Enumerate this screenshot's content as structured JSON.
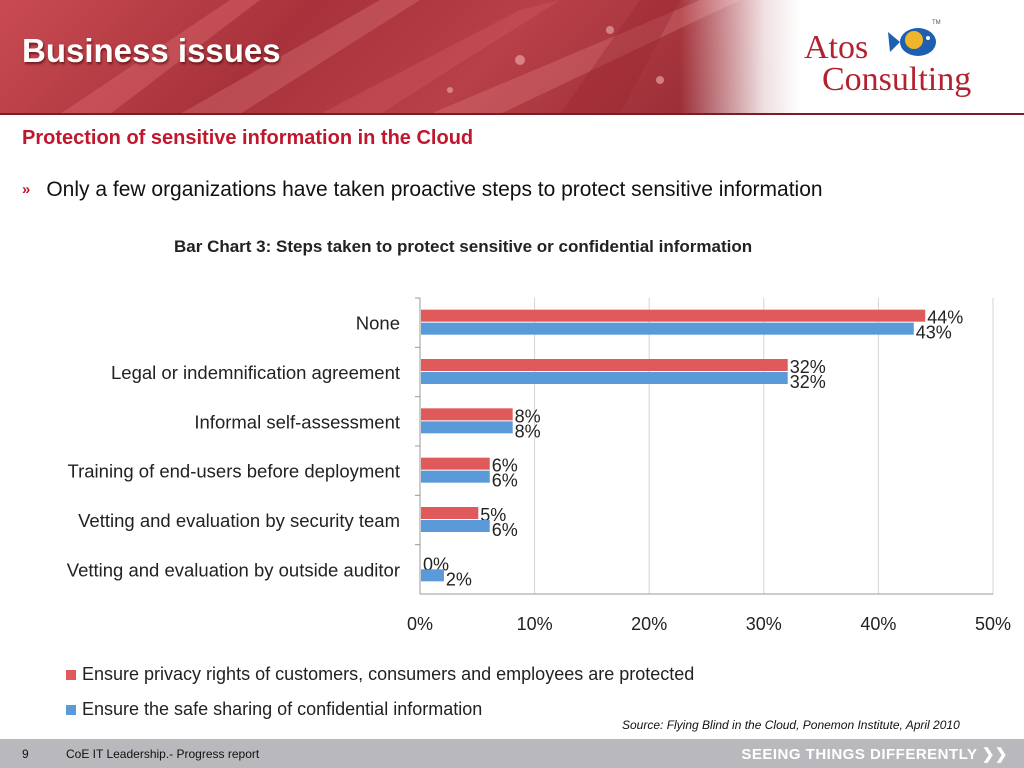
{
  "slide": {
    "title": "Business issues",
    "subtitle": "Protection of sensitive information in the Cloud",
    "bullet_mark": "»",
    "bullet": "Only a few organizations have taken proactive steps to protect sensitive information"
  },
  "logo": {
    "line1": "Atos",
    "line2": "Consulting",
    "tm": "TM"
  },
  "colors": {
    "accent": "#c0172d",
    "series_red": "#e05a5c",
    "series_blue": "#5a9ad8",
    "footer": "#b9b9bd"
  },
  "chart_data": {
    "type": "bar",
    "orientation": "horizontal",
    "title": "Bar Chart 3: Steps taken to protect sensitive or confidential information",
    "categories": [
      "None",
      "Legal or indemnification agreement",
      "Informal self-assessment",
      "Training of end-users before deployment",
      "Vetting and evaluation by security team",
      "Vetting and evaluation by outside auditor"
    ],
    "series": [
      {
        "name": "Ensure privacy rights of customers, consumers and employees are protected",
        "values": [
          44,
          32,
          8,
          6,
          5,
          0
        ],
        "labels": [
          "44%",
          "32%",
          "8%",
          "6%",
          "5%",
          "0%"
        ]
      },
      {
        "name": "Ensure the safe sharing of confidential information",
        "values": [
          43,
          32,
          8,
          6,
          6,
          2
        ],
        "labels": [
          "43%",
          "32%",
          "8%",
          "6%",
          "6%",
          "2%"
        ]
      }
    ],
    "xlim": [
      0,
      50
    ],
    "xticks": [
      "0%",
      "10%",
      "20%",
      "30%",
      "40%",
      "50%"
    ],
    "grid": true,
    "legend": "bottom"
  },
  "source": "Source: Flying Blind in the Cloud, Ponemon Institute, April 2010",
  "footer": {
    "page": "9",
    "text": "CoE IT Leadership.- Progress report",
    "tagline": "SEEING THINGS DIFFERENTLY ❯❯"
  }
}
